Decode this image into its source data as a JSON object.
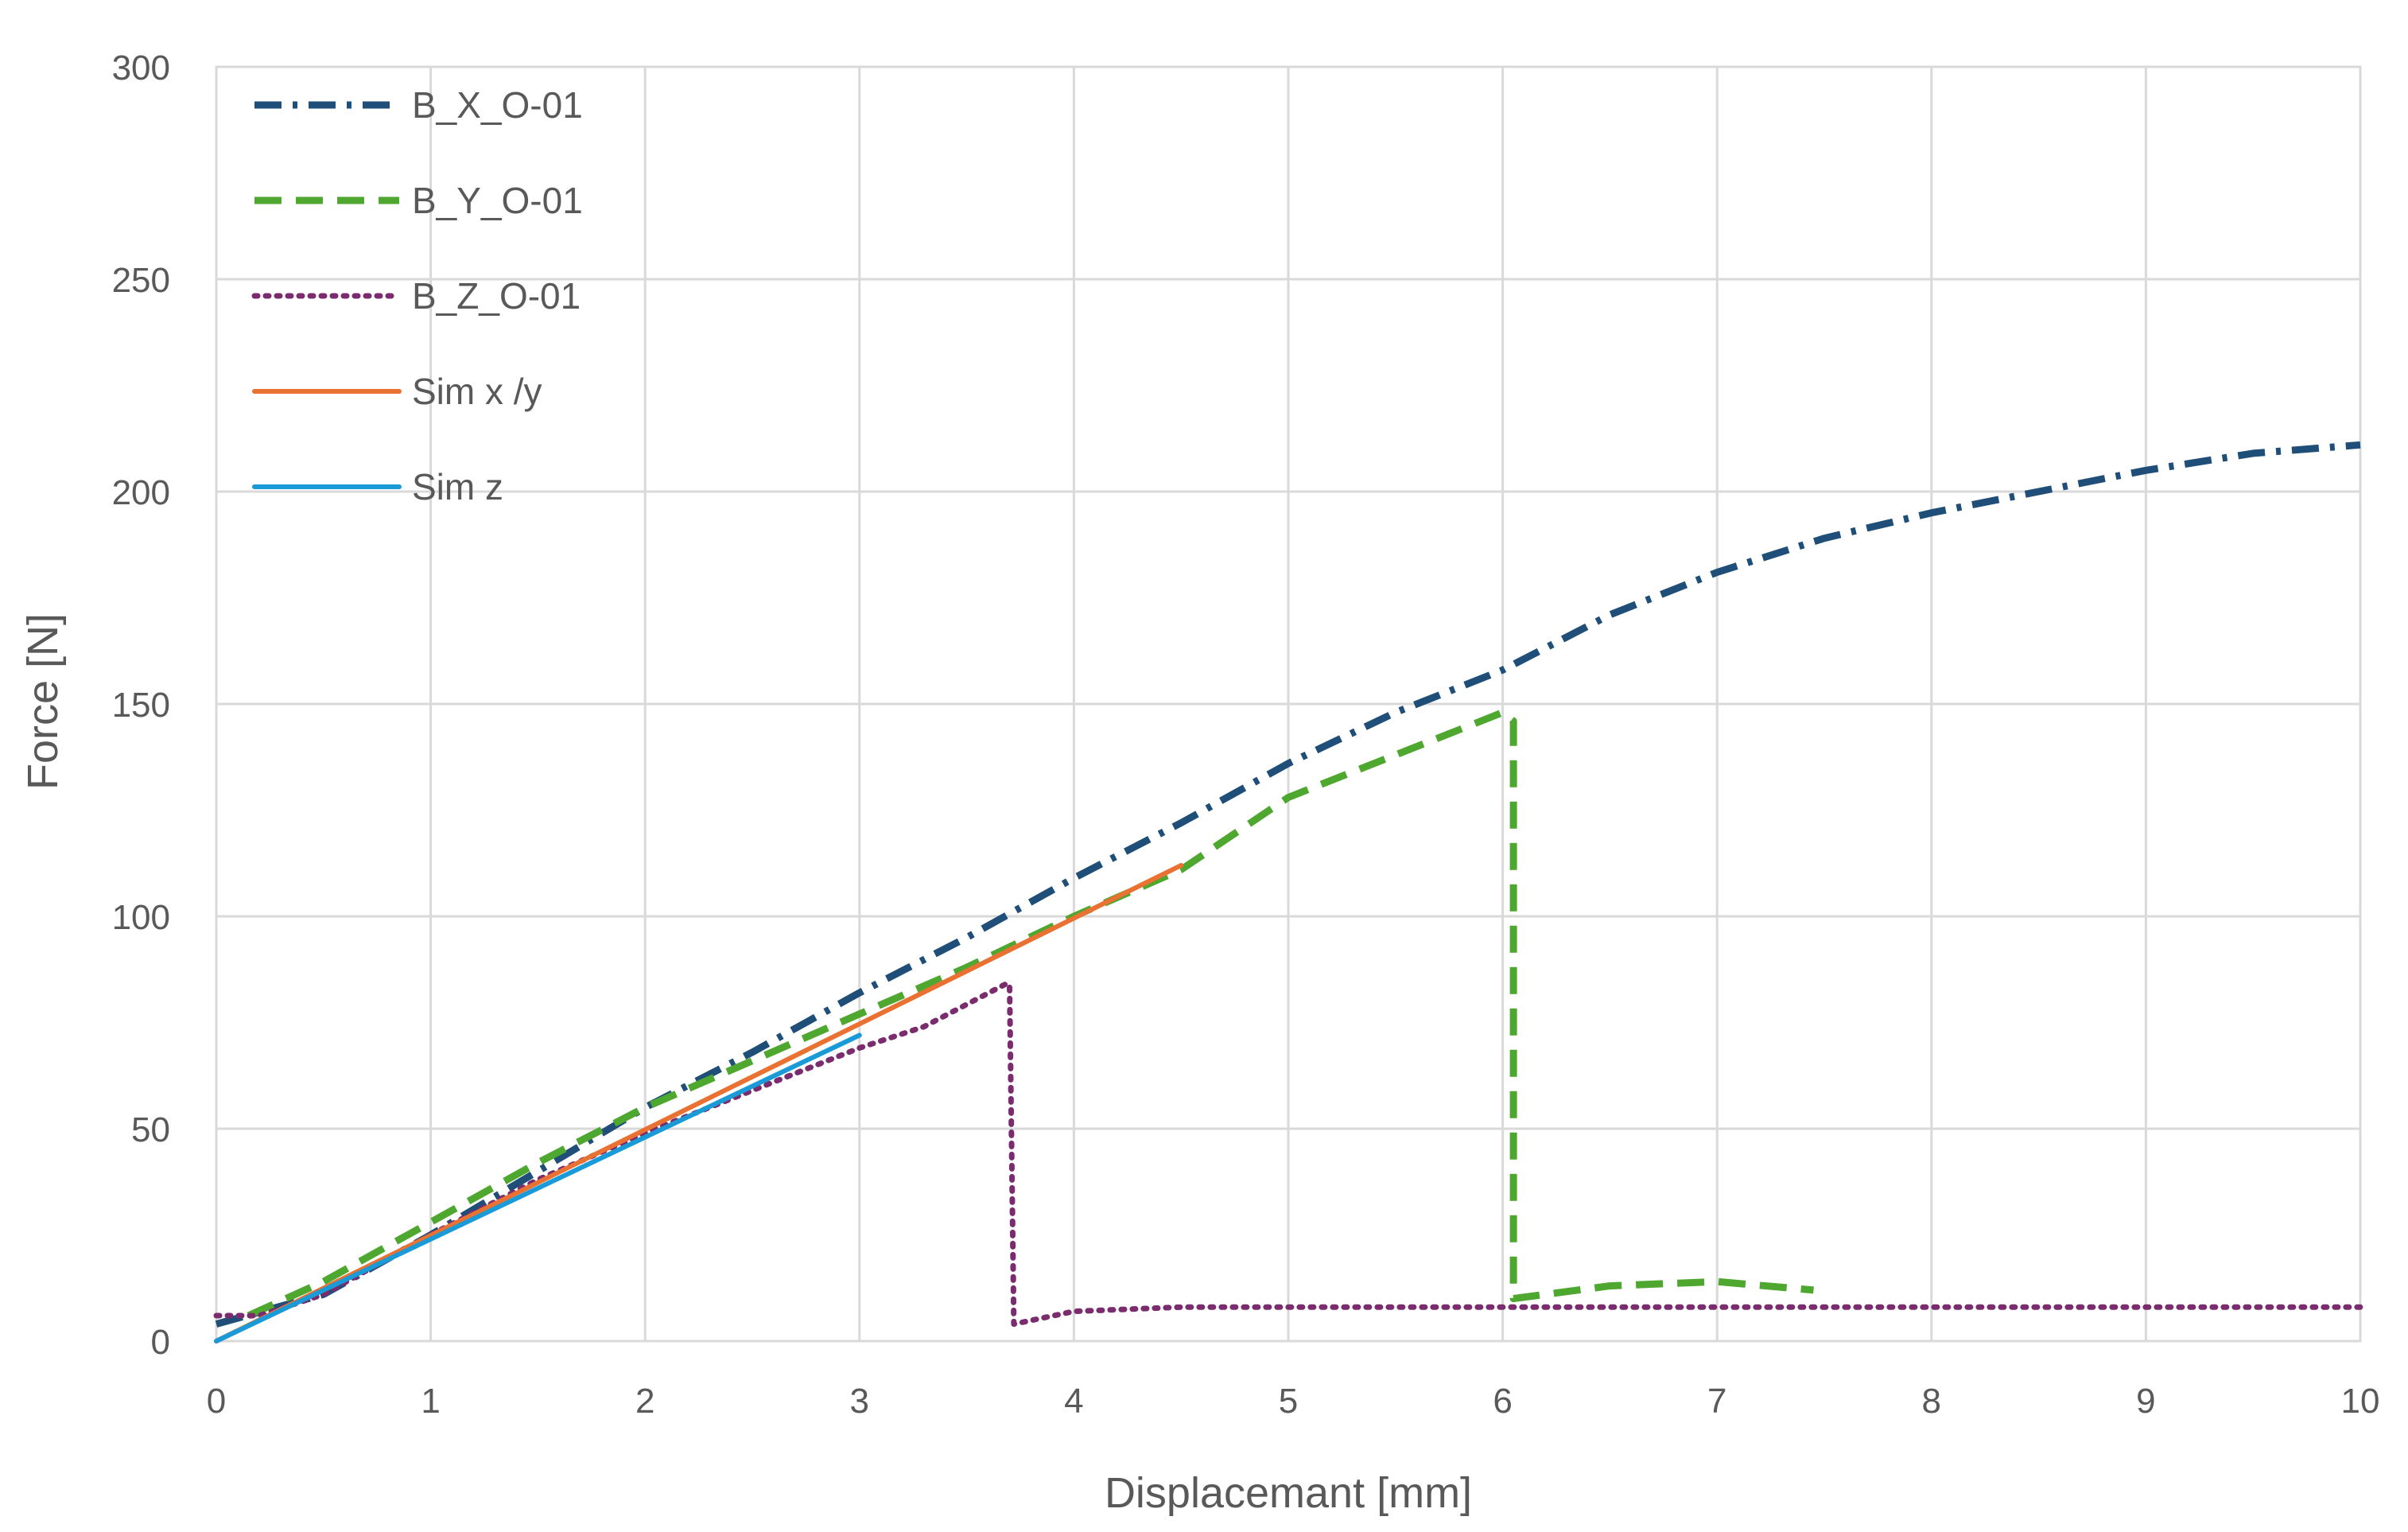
{
  "chart_data": {
    "type": "line",
    "title": "",
    "xlabel": "Displacemant [mm]",
    "ylabel": "Force [N]",
    "xlim": [
      0,
      10
    ],
    "ylim": [
      0,
      300
    ],
    "x_ticks": [
      "0",
      "1",
      "2",
      "3",
      "4",
      "5",
      "6",
      "7",
      "8",
      "9",
      "10"
    ],
    "y_ticks": [
      "0",
      "50",
      "100",
      "150",
      "200",
      "250",
      "300"
    ],
    "grid": true,
    "legend_position": "top-left",
    "series": [
      {
        "name": "B_X_O-01",
        "color": "#1f4e79",
        "dash": "dash-dot",
        "x": [
          0,
          0.5,
          1,
          1.5,
          2,
          2.5,
          3,
          3.5,
          4,
          4.5,
          5,
          5.5,
          6,
          6.5,
          7,
          7.5,
          8,
          8.5,
          9,
          9.5,
          10
        ],
        "y": [
          4,
          11,
          25,
          40,
          55,
          68,
          82,
          95,
          109,
          122,
          136,
          148,
          158,
          171,
          181,
          189,
          195,
          200,
          205,
          209,
          211
        ]
      },
      {
        "name": "B_Y_O-01",
        "color": "#4ea72e",
        "dash": "dash",
        "x": [
          0.15,
          0.5,
          1,
          1.5,
          2,
          2.5,
          3,
          3.5,
          4,
          4.5,
          5,
          5.5,
          6,
          6.05,
          6.05,
          6.5,
          7,
          7.45
        ],
        "y": [
          6,
          14,
          28,
          42,
          55,
          66,
          77,
          88,
          100,
          111,
          128,
          138,
          148,
          146,
          10,
          13,
          14,
          12
        ]
      },
      {
        "name": "B_Z_O-01",
        "color": "#7b2c6e",
        "dash": "dot",
        "x": [
          0,
          0.2,
          0.5,
          1,
          1.5,
          2,
          2.5,
          3,
          3.3,
          3.68,
          3.7,
          3.72,
          4,
          4.5,
          5,
          5.5,
          6,
          7,
          8,
          9,
          10
        ],
        "y": [
          6,
          6,
          11,
          25,
          38,
          49,
          59,
          69,
          74,
          84,
          84,
          4,
          7,
          8,
          8,
          8,
          8,
          8,
          8,
          8,
          8
        ]
      },
      {
        "name": "Sim x /y",
        "color": "#e97132",
        "dash": "solid",
        "x": [
          0,
          4.5
        ],
        "y": [
          0,
          112
        ]
      },
      {
        "name": "Sim z",
        "color": "#1a9bd7",
        "dash": "solid",
        "x": [
          0,
          3
        ],
        "y": [
          0,
          72
        ]
      }
    ]
  }
}
